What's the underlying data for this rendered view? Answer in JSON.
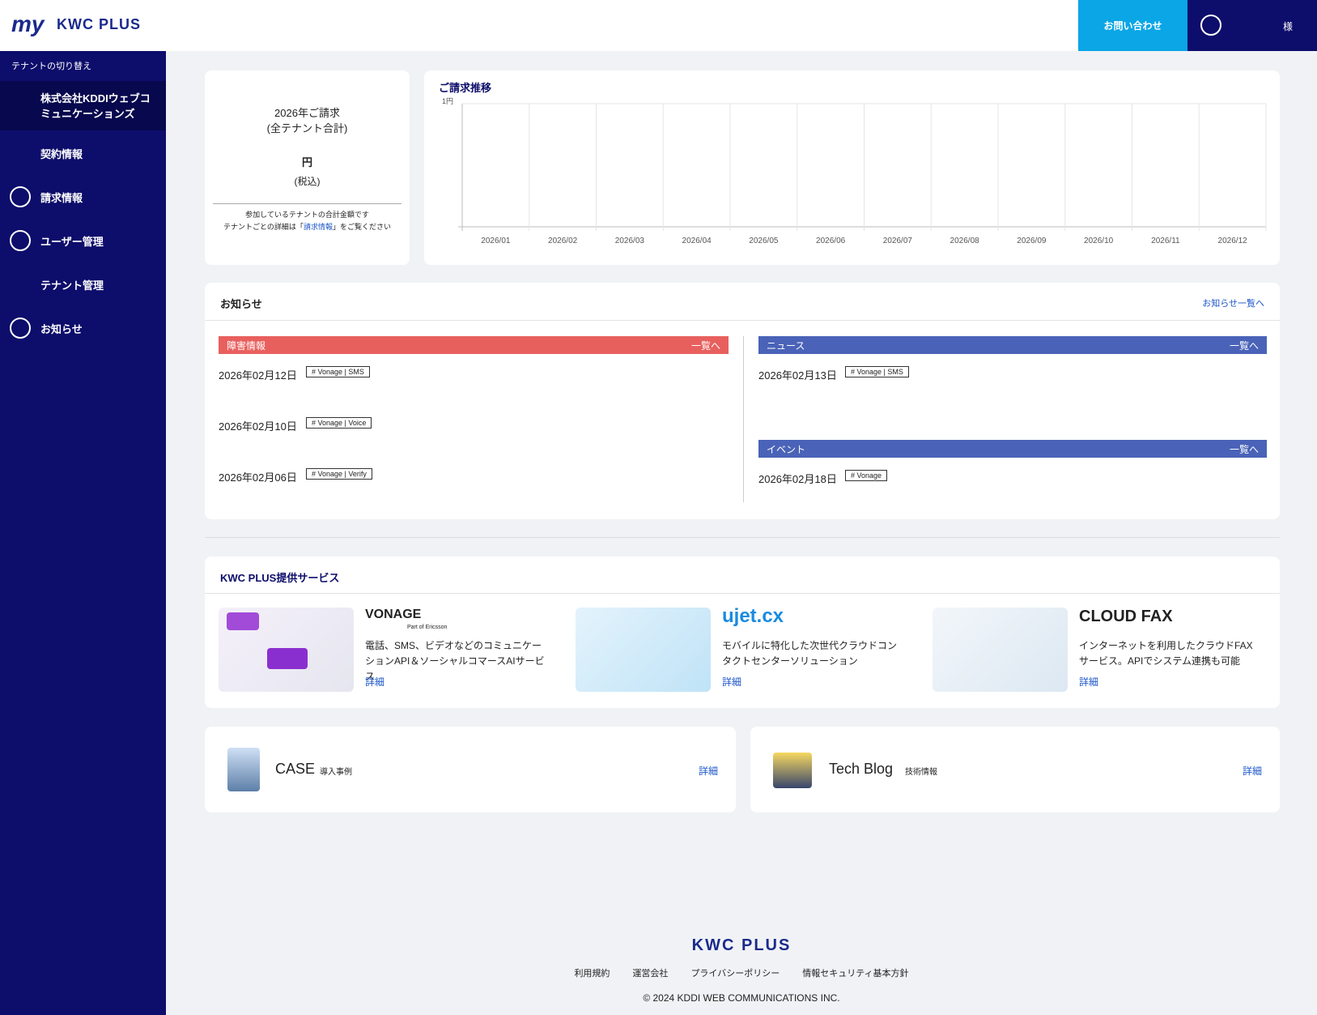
{
  "header": {
    "logo_my": "my",
    "logo": "KWC PLUS",
    "contact": "お問い合わせ",
    "user_suffix": "様"
  },
  "sidebar": {
    "tenant_switch": "テナントの切り替え",
    "company": "株式会社KDDIウェブコミュニケーションズ",
    "menu": [
      "契約情報",
      "請求情報",
      "ユーザー管理",
      "テナント管理",
      "お知らせ"
    ]
  },
  "billing": {
    "title": "2026年ご請求",
    "subtitle": "(全テナント合計)",
    "unit": "円",
    "tax": "(税込)",
    "note": "参加しているテナントの合計金額です",
    "detail_before": "テナントごとの詳細は「",
    "detail_link": "請求情報",
    "detail_after": "」をご覧ください"
  },
  "billing_chart": {
    "title": "ご請求推移",
    "ytick": "1円",
    "categories": [
      "2026/01",
      "2026/02",
      "2026/03",
      "2026/04",
      "2026/05",
      "2026/06",
      "2026/07",
      "2026/08",
      "2026/09",
      "2026/10",
      "2026/11",
      "2026/12"
    ]
  },
  "news": {
    "title": "お知らせ",
    "all_link": "お知らせ一覧へ",
    "sections": [
      {
        "label": "障害情報",
        "link": "一覧へ",
        "items": [
          {
            "date": "2026年02月12日",
            "tag": "# Vonage | SMS"
          },
          {
            "date": "2026年02月10日",
            "tag": "# Vonage | Voice"
          },
          {
            "date": "2026年02月06日",
            "tag": "# Vonage | Verify"
          }
        ]
      },
      {
        "label": "ニュース",
        "link": "一覧へ",
        "items": [
          {
            "date": "2026年02月13日",
            "tag": "# Vonage | SMS"
          }
        ]
      },
      {
        "label": "イベント",
        "link": "一覧へ",
        "items": [
          {
            "date": "2026年02月18日",
            "tag": "# Vonage"
          }
        ]
      }
    ]
  },
  "services": {
    "title": "KWC PLUS提供サービス",
    "items": [
      {
        "logo": "VONAGE",
        "sublogo": "Part of Ericsson",
        "desc": "電話、SMS、ビデオなどのコミュニケーションAPI＆ソーシャルコマースAIサービス",
        "link": "詳細"
      },
      {
        "logo": "ujet.cx",
        "desc": "モバイルに特化した次世代クラウドコンタクトセンターソリューション",
        "link": "詳細"
      },
      {
        "logo": "CLOUD FAX",
        "desc": "インターネットを利用したクラウドFAXサービス。APIでシステム連携も可能",
        "link": "詳細"
      }
    ]
  },
  "cards": [
    {
      "title": "CASE",
      "subtitle": "導入事例",
      "link": "詳細"
    },
    {
      "title": "Tech Blog",
      "subtitle": "技術情報",
      "link": "詳細"
    }
  ],
  "footer": {
    "logo": "KWC PLUS",
    "links": [
      "利用規約",
      "運営会社",
      "プライバシーポリシー",
      "情報セキュリティ基本方針"
    ],
    "copyright": "© 2024 KDDI WEB COMMUNICATIONS INC."
  }
}
